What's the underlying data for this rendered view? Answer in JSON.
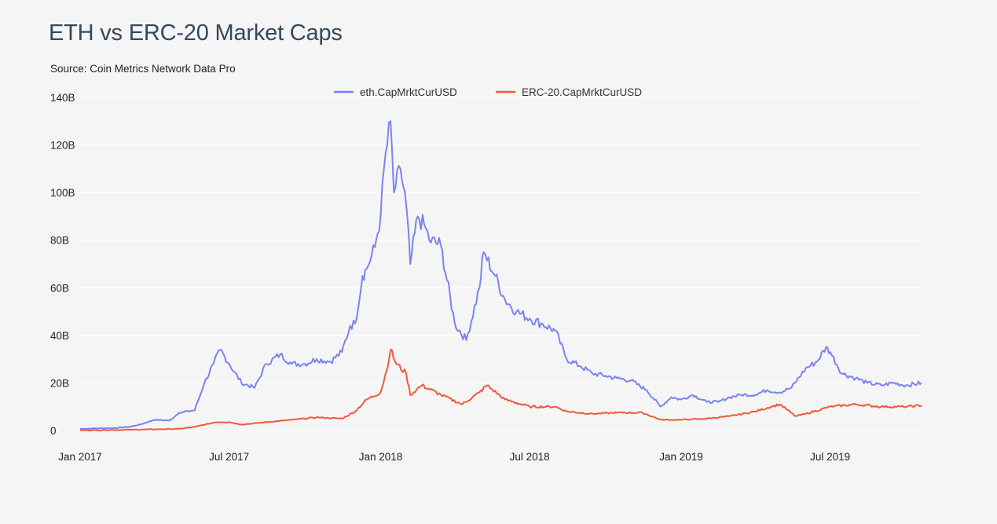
{
  "colors": {
    "eth": "#7b83f0",
    "erc20": "#ef5a3c",
    "grid": "#ffffff",
    "title": "#34495e"
  },
  "chart_data": {
    "type": "line",
    "title": "ETH vs ERC-20 Market Caps",
    "subtitle": "Source: Coin Metrics Network Data Pro",
    "xlabel": "",
    "ylabel": "",
    "ylim": [
      0,
      140
    ],
    "xlim": [
      "2017-01-01",
      "2019-10-20"
    ],
    "grid": true,
    "legend_position": "top-center",
    "y_ticks": [
      0,
      20,
      40,
      60,
      80,
      100,
      120,
      140
    ],
    "y_tick_labels": [
      "0",
      "20B",
      "40B",
      "60B",
      "80B",
      "100B",
      "120B",
      "140B"
    ],
    "x_ticks": [
      "2017-01-01",
      "2017-07-01",
      "2018-01-01",
      "2018-07-01",
      "2019-01-01",
      "2019-07-01"
    ],
    "x_tick_labels": [
      "Jan 2017",
      "Jul 2017",
      "Jan 2018",
      "Jul 2018",
      "Jan 2019",
      "Jul 2019"
    ],
    "series": [
      {
        "name": "eth.CapMrktCurUSD",
        "color": "#7b83f0",
        "x": [
          "2017-01-01",
          "2017-01-20",
          "2017-02-10",
          "2017-03-01",
          "2017-03-15",
          "2017-04-01",
          "2017-04-20",
          "2017-05-01",
          "2017-05-20",
          "2017-06-01",
          "2017-06-12",
          "2017-06-20",
          "2017-07-01",
          "2017-07-16",
          "2017-08-01",
          "2017-08-15",
          "2017-09-01",
          "2017-09-15",
          "2017-10-01",
          "2017-10-15",
          "2017-11-01",
          "2017-11-15",
          "2017-11-25",
          "2017-12-01",
          "2017-12-10",
          "2017-12-15",
          "2017-12-25",
          "2018-01-01",
          "2018-01-05",
          "2018-01-13",
          "2018-01-17",
          "2018-01-25",
          "2018-02-01",
          "2018-02-06",
          "2018-02-15",
          "2018-02-25",
          "2018-03-01",
          "2018-03-15",
          "2018-04-01",
          "2018-04-15",
          "2018-05-01",
          "2018-05-06",
          "2018-05-20",
          "2018-06-01",
          "2018-06-15",
          "2018-07-01",
          "2018-07-15",
          "2018-08-01",
          "2018-08-15",
          "2018-09-01",
          "2018-09-15",
          "2018-10-01",
          "2018-10-15",
          "2018-11-01",
          "2018-11-20",
          "2018-12-07",
          "2018-12-20",
          "2019-01-01",
          "2019-01-15",
          "2019-02-01",
          "2019-02-15",
          "2019-03-01",
          "2019-03-15",
          "2019-04-01",
          "2019-04-15",
          "2019-05-01",
          "2019-05-15",
          "2019-06-01",
          "2019-06-15",
          "2019-06-26",
          "2019-07-01",
          "2019-07-15",
          "2019-08-01",
          "2019-08-15",
          "2019-09-01",
          "2019-09-15",
          "2019-10-01",
          "2019-10-20"
        ],
        "values": [
          0.7,
          0.9,
          1.0,
          1.5,
          2.5,
          4.5,
          4.2,
          7.5,
          8.5,
          20,
          28,
          34,
          28,
          20,
          18,
          28,
          32,
          28,
          28,
          30,
          29,
          33,
          44,
          45,
          65,
          68,
          77,
          90,
          110,
          130,
          100,
          110,
          95,
          70,
          90,
          85,
          80,
          78,
          45,
          38,
          60,
          75,
          65,
          55,
          50,
          47,
          45,
          42,
          30,
          27,
          24,
          23,
          22,
          21,
          17,
          10,
          14,
          13,
          15,
          12,
          12,
          14,
          15,
          15,
          17,
          16,
          18,
          26,
          29,
          35,
          33,
          24,
          22,
          20,
          19,
          20,
          19,
          20
        ]
      },
      {
        "name": "ERC-20.CapMrktCurUSD",
        "color": "#ef5a3c",
        "x": [
          "2017-01-01",
          "2017-03-01",
          "2017-05-01",
          "2017-05-20",
          "2017-06-15",
          "2017-07-01",
          "2017-07-16",
          "2017-08-15",
          "2017-09-15",
          "2017-10-15",
          "2017-11-15",
          "2017-12-01",
          "2017-12-15",
          "2018-01-01",
          "2018-01-08",
          "2018-01-13",
          "2018-01-20",
          "2018-02-01",
          "2018-02-06",
          "2018-02-20",
          "2018-03-15",
          "2018-04-10",
          "2018-05-01",
          "2018-05-10",
          "2018-06-01",
          "2018-07-01",
          "2018-08-01",
          "2018-08-15",
          "2018-09-15",
          "2018-10-15",
          "2018-11-15",
          "2018-12-07",
          "2019-01-01",
          "2019-02-01",
          "2019-03-01",
          "2019-04-01",
          "2019-04-20",
          "2019-05-01",
          "2019-05-20",
          "2019-06-01",
          "2019-07-01",
          "2019-08-01",
          "2019-09-01",
          "2019-10-01",
          "2019-10-20"
        ],
        "values": [
          0.1,
          0.3,
          0.7,
          1.5,
          3.5,
          3.5,
          2.5,
          3.5,
          4.5,
          5.5,
          5,
          8,
          13,
          16,
          25,
          34,
          28,
          24,
          15,
          19,
          15,
          11,
          16,
          19,
          13,
          10,
          10,
          8,
          7,
          7.5,
          7.5,
          4.5,
          4.5,
          5,
          6,
          8,
          10,
          11,
          6,
          7,
          10,
          11,
          10,
          10,
          10.5
        ]
      }
    ]
  }
}
